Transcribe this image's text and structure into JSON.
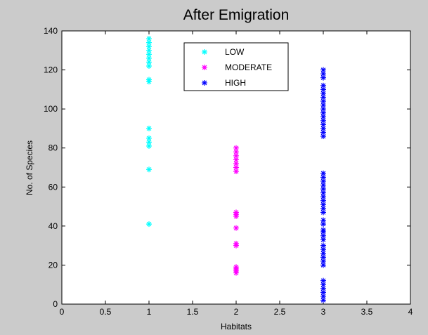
{
  "chart_data": {
    "type": "scatter",
    "title": "After Emigration",
    "xlabel": "Habitats",
    "ylabel": "No. of Species",
    "xlim": [
      0,
      4
    ],
    "ylim": [
      0,
      140
    ],
    "xticks": [
      0,
      0.5,
      1,
      1.5,
      2,
      2.5,
      3,
      3.5,
      4
    ],
    "xtick_labels": [
      "0",
      "0.5",
      "1",
      "1.5",
      "2",
      "2.5",
      "3",
      "3.5",
      "4"
    ],
    "yticks": [
      0,
      20,
      40,
      60,
      80,
      100,
      120,
      140
    ],
    "ytick_labels": [
      "0",
      "20",
      "40",
      "60",
      "80",
      "100",
      "120",
      "140"
    ],
    "grid": false,
    "legend_position": "top-center",
    "marker": "asterisk",
    "series": [
      {
        "name": "LOW",
        "color": "#00ffff",
        "x": 1,
        "y": [
          41,
          69,
          81,
          83,
          85,
          90,
          114,
          115,
          122,
          124,
          126,
          128,
          130,
          132,
          134,
          136
        ]
      },
      {
        "name": "MODERATE",
        "color": "#ff00ff",
        "x": 2,
        "y": [
          16,
          17,
          18,
          19,
          30,
          31,
          39,
          45,
          46,
          47,
          68,
          70,
          72,
          74,
          76,
          78,
          80
        ]
      },
      {
        "name": "HIGH",
        "color": "#0000ff",
        "x": 3,
        "y": [
          2,
          4,
          6,
          8,
          10,
          12,
          20,
          22,
          24,
          26,
          28,
          30,
          33,
          35,
          37,
          38,
          41,
          43,
          47,
          49,
          51,
          53,
          55,
          57,
          59,
          61,
          63,
          65,
          67,
          86,
          88,
          90,
          92,
          94,
          96,
          98,
          100,
          102,
          104,
          106,
          108,
          110,
          112,
          116,
          118,
          120
        ]
      }
    ]
  }
}
